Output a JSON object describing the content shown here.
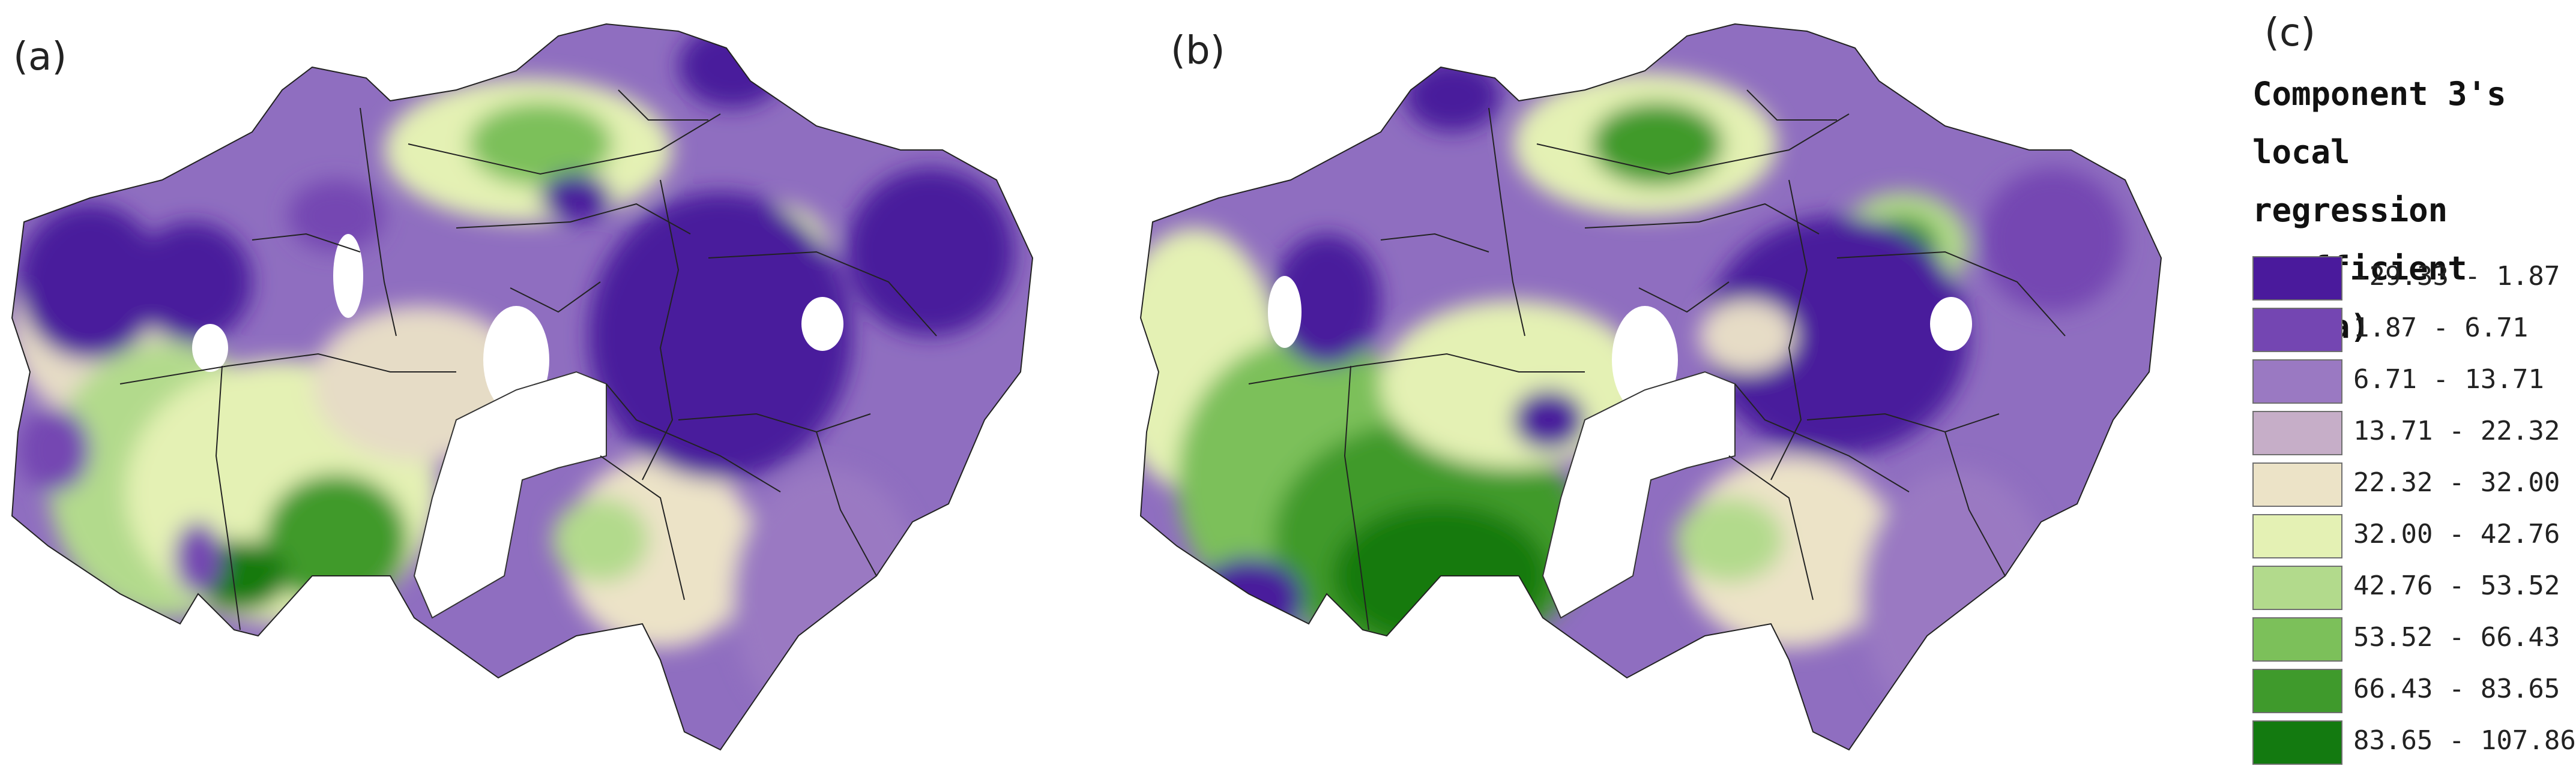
{
  "panels": [
    {
      "label": "(a)"
    },
    {
      "label": "(b)"
    },
    {
      "label": "(c)"
    }
  ],
  "legend": {
    "title": "Component 3's\nlocal regression\ncoefficient (beta)",
    "classes": [
      {
        "range": "-29.33 - 1.87",
        "color": "#4a1a9c"
      },
      {
        "range": "1.87 - 6.71",
        "color": "#7446b2"
      },
      {
        "range": "6.71 - 13.71",
        "color": "#9a79c2"
      },
      {
        "range": "13.71 - 22.32",
        "color": "#c6aec8"
      },
      {
        "range": "22.32 - 32.00",
        "color": "#ece3c7"
      },
      {
        "range": "32.00 - 42.76",
        "color": "#e4f1b4"
      },
      {
        "range": "42.76 - 53.52",
        "color": "#b2da8c"
      },
      {
        "range": "53.52 - 66.43",
        "color": "#7cc05a"
      },
      {
        "range": "66.43 - 83.65",
        "color": "#3f9a2c"
      },
      {
        "range": "83.65 - 107.86",
        "color": "#137a10"
      }
    ]
  }
}
